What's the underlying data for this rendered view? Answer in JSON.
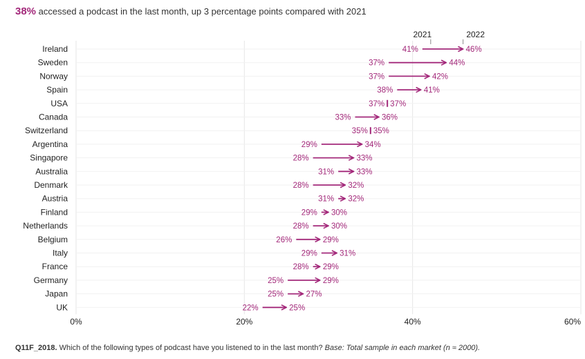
{
  "headline": {
    "highlight": "38%",
    "text": " accessed a podcast in the last month, up 3 percentage points compared with 2021"
  },
  "footnote": {
    "code": "Q11F_2018.",
    "question": " Which of the following types of podcast have you listened to in the last month? ",
    "base": "Base: Total sample in each market (n ≈ 2000)."
  },
  "colors": {
    "accent": "#a3287a",
    "grid": "#e6e6e6",
    "text": "#222222"
  },
  "chart_data": {
    "type": "dumbbell-arrow",
    "series": [
      {
        "name": "2021",
        "values": [
          41,
          37,
          37,
          38,
          37,
          33,
          35,
          29,
          28,
          31,
          28,
          31,
          29,
          28,
          26,
          29,
          28,
          25,
          25,
          22
        ]
      },
      {
        "name": "2022",
        "values": [
          46,
          44,
          42,
          41,
          37,
          36,
          35,
          34,
          33,
          33,
          32,
          32,
          30,
          30,
          29,
          31,
          29,
          29,
          27,
          25
        ]
      }
    ],
    "categories": [
      "Ireland",
      "Sweden",
      "Norway",
      "Spain",
      "USA",
      "Canada",
      "Switzerland",
      "Argentina",
      "Singapore",
      "Australia",
      "Denmark",
      "Austria",
      "Finland",
      "Netherlands",
      "Belgium",
      "Italy",
      "France",
      "Germany",
      "Japan",
      "UK"
    ],
    "x_ticks": [
      "0%",
      "20%",
      "40%",
      "60%"
    ],
    "xlim": [
      0,
      60
    ],
    "grid": true,
    "legend": "top"
  }
}
